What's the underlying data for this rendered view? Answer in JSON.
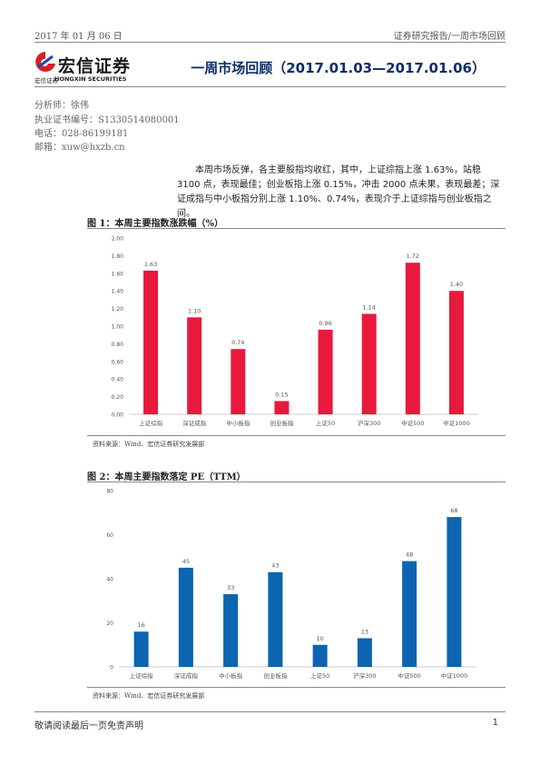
{
  "header": {
    "date": "2017 年 01 月 06 日",
    "section": "证券研究报告/一周市场回顾"
  },
  "logo": {
    "name_cn": "宏信证券",
    "sub_cn": "宏信证券",
    "sub_en": "HONGXIN SECURITIES"
  },
  "title": "一周市场回顾（2017.01.03—2017.01.06）",
  "analyst": {
    "name": "分析师：徐伟",
    "license": "执业证书编号：S1330514080001",
    "phone": "电话：028-86199181",
    "email": "邮箱：xuw@hxzb.cn"
  },
  "summary": "本周市场反弹，各主要股指均收红，其中，上证综指上涨 1.63%，站稳 3100 点，表现最佳；创业板指上涨 0.15%，冲击 2000 点未果，表现最差；深证成指与中小板指分别上涨 1.10%、0.74%，表现介于上证综指与创业板指之间。",
  "colors": {
    "chart1_bar": "#e8193c",
    "chart2_bar": "#0d64b0",
    "title": "#0d2d6b"
  },
  "chart_data": [
    {
      "type": "bar",
      "title": "图 1：本周主要指数涨跌幅（%）",
      "categories": [
        "上证综指",
        "深证成指",
        "中小板指",
        "创业板指",
        "上证50",
        "沪深300",
        "中证500",
        "中证1000"
      ],
      "values": [
        1.63,
        1.1,
        0.74,
        0.15,
        0.96,
        1.14,
        1.72,
        1.4
      ],
      "data_labels": [
        "1.63",
        "1.10",
        "0.74",
        "0.15",
        "0.96",
        "1.14",
        "1.72",
        "1.40"
      ],
      "yticks": [
        "0.00",
        "0.20",
        "0.40",
        "0.60",
        "0.80",
        "1.00",
        "1.20",
        "1.40",
        "1.60",
        "1.80",
        "2.00"
      ],
      "ylim": [
        0,
        2
      ],
      "grid": false,
      "source": "资料来源：Wind、宏信证券研究发展部"
    },
    {
      "type": "bar",
      "title": "图 2：本周主要指数落定 PE（TTM）",
      "categories": [
        "上证综指",
        "深证成指",
        "中小板指",
        "创业板指",
        "上证50",
        "沪深300",
        "中证500",
        "中证1000"
      ],
      "values": [
        16,
        45,
        33,
        43,
        10,
        13,
        48,
        68
      ],
      "data_labels": [
        "16",
        "45",
        "33",
        "43",
        "10",
        "13",
        "48",
        "68"
      ],
      "yticks": [
        "0",
        "20",
        "40",
        "60",
        "80"
      ],
      "ylim": [
        0,
        80
      ],
      "grid": false,
      "source": "资料来源：Wind、宏信证券研究发展部"
    }
  ],
  "footer": {
    "disclaimer": "敬请阅读最后一页免责声明",
    "page": "1"
  }
}
